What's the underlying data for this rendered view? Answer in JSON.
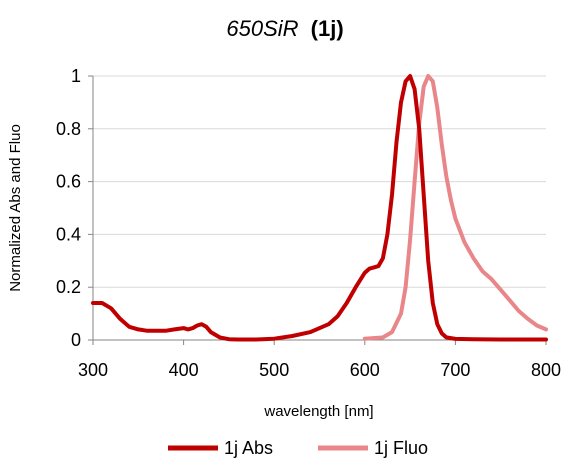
{
  "chart_data": {
    "type": "line",
    "title_italic": "650SiR",
    "title_bold": "(1j)",
    "xlabel": "wavelength [nm]",
    "ylabel": "Normalized Abs and Fluo",
    "xlim": [
      300,
      800
    ],
    "ylim": [
      0,
      1
    ],
    "x_ticks": [
      "300",
      "400",
      "500",
      "600",
      "700",
      "800"
    ],
    "y_ticks": [
      "0",
      "0.2",
      "0.4",
      "0.6",
      "0.8",
      "1"
    ],
    "grid": "horizontal",
    "legend_position": "bottom",
    "series": [
      {
        "name": "1j Abs",
        "color": "#c00000",
        "x": [
          300,
          310,
          320,
          330,
          340,
          350,
          360,
          370,
          380,
          390,
          400,
          405,
          410,
          415,
          420,
          425,
          430,
          440,
          450,
          460,
          480,
          500,
          520,
          540,
          560,
          570,
          580,
          590,
          600,
          605,
          610,
          615,
          620,
          625,
          630,
          635,
          640,
          645,
          650,
          655,
          660,
          665,
          670,
          675,
          680,
          685,
          690,
          700,
          720,
          750,
          800
        ],
        "y": [
          0.14,
          0.14,
          0.12,
          0.08,
          0.05,
          0.04,
          0.035,
          0.035,
          0.035,
          0.04,
          0.045,
          0.04,
          0.045,
          0.055,
          0.06,
          0.05,
          0.03,
          0.01,
          0.003,
          0.002,
          0.002,
          0.005,
          0.015,
          0.03,
          0.06,
          0.09,
          0.14,
          0.2,
          0.255,
          0.27,
          0.275,
          0.28,
          0.31,
          0.4,
          0.55,
          0.75,
          0.9,
          0.98,
          1.0,
          0.95,
          0.8,
          0.55,
          0.3,
          0.14,
          0.06,
          0.025,
          0.01,
          0.004,
          0.003,
          0.002,
          0.002
        ]
      },
      {
        "name": "1j Fluo",
        "color": "#e8868a",
        "x": [
          600,
          620,
          630,
          640,
          645,
          650,
          655,
          660,
          665,
          670,
          675,
          680,
          685,
          690,
          695,
          700,
          710,
          720,
          730,
          740,
          750,
          760,
          770,
          780,
          790,
          800
        ],
        "y": [
          0.005,
          0.01,
          0.03,
          0.1,
          0.2,
          0.38,
          0.6,
          0.82,
          0.96,
          1.0,
          0.98,
          0.88,
          0.74,
          0.62,
          0.53,
          0.46,
          0.37,
          0.31,
          0.26,
          0.23,
          0.19,
          0.15,
          0.11,
          0.08,
          0.055,
          0.04
        ]
      }
    ]
  }
}
